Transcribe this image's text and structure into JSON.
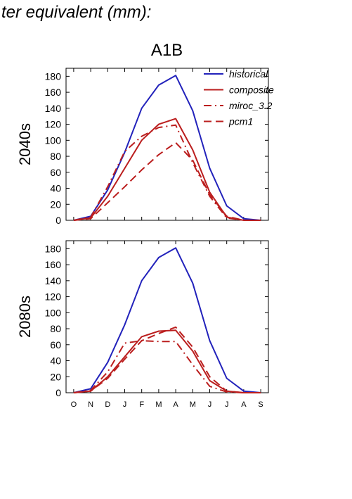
{
  "header": {
    "title": "ter equivalent (mm):"
  },
  "chart_data": {
    "type": "line",
    "title": "A1B",
    "categories": [
      "O",
      "N",
      "D",
      "J",
      "F",
      "M",
      "A",
      "M",
      "J",
      "J",
      "A",
      "S"
    ],
    "ylim": [
      0,
      190
    ],
    "yticks": [
      0,
      20,
      40,
      60,
      80,
      100,
      120,
      140,
      160,
      180
    ],
    "grid": false,
    "legend_placement": "top-right",
    "colors": {
      "historical": "#2222bb",
      "model": "#bb1e1e"
    },
    "legend": [
      {
        "name": "historical",
        "color": "#2222bb",
        "dash": "solid"
      },
      {
        "name": "composite",
        "color": "#bb1e1e",
        "dash": "solid"
      },
      {
        "name": "miroc_3.2",
        "color": "#bb1e1e",
        "dash": "dashdot"
      },
      {
        "name": "pcm1",
        "color": "#bb1e1e",
        "dash": "dashed"
      }
    ],
    "panels": [
      {
        "ylabel": "2040s",
        "series": [
          {
            "name": "historical",
            "values": [
              0,
              5,
              38,
              85,
              140,
              169,
              181,
              137,
              65,
              18,
              2,
              0
            ]
          },
          {
            "name": "composite",
            "values": [
              0,
              3,
              30,
              65,
              100,
              120,
              127,
              88,
              35,
              4,
              0,
              0
            ]
          },
          {
            "name": "miroc_3.2",
            "values": [
              0,
              4,
              42,
              86,
              105,
              116,
              119,
              72,
              30,
              3,
              0,
              0
            ]
          },
          {
            "name": "pcm1",
            "values": [
              0,
              2,
              22,
              42,
              63,
              82,
              97,
              75,
              32,
              5,
              0,
              0
            ]
          }
        ]
      },
      {
        "ylabel": "2080s",
        "series": [
          {
            "name": "historical",
            "values": [
              0,
              5,
              38,
              85,
              140,
              169,
              181,
              137,
              65,
              18,
              2,
              0
            ]
          },
          {
            "name": "composite",
            "values": [
              0,
              2,
              20,
              45,
              70,
              77,
              78,
              52,
              15,
              2,
              0,
              0
            ]
          },
          {
            "name": "miroc_3.2",
            "values": [
              0,
              3,
              26,
              62,
              65,
              64,
              64,
              35,
              8,
              1,
              0,
              0
            ]
          },
          {
            "name": "pcm1",
            "values": [
              0,
              2,
              18,
              42,
              65,
              74,
              82,
              57,
              20,
              2,
              0,
              0
            ]
          }
        ]
      }
    ]
  }
}
